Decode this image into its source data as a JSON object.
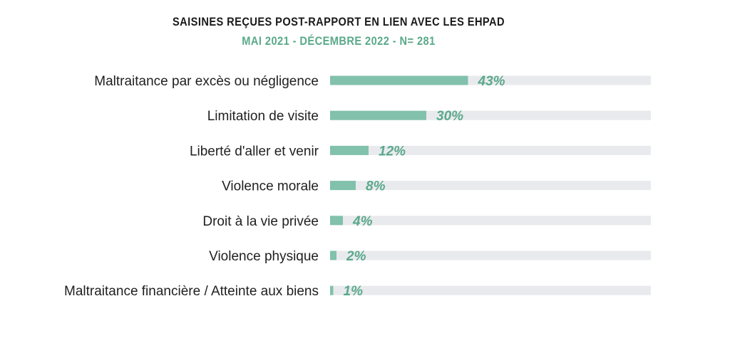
{
  "chart_data": {
    "type": "bar",
    "orientation": "horizontal",
    "title": "SAISINES REÇUES POST-RAPPORT EN LIEN AVEC LES EHPAD",
    "subtitle": "MAI 2021 - DÉCEMBRE 2022 - N= 281",
    "categories": [
      "Maltraitance par excès ou négligence",
      "Limitation de visite",
      "Liberté d'aller et venir",
      "Violence morale",
      "Droit à la vie privée",
      "Violence physique",
      "Maltraitance financière / Atteinte aux biens"
    ],
    "values": [
      43,
      30,
      12,
      8,
      4,
      2,
      1
    ],
    "value_labels": [
      "43%",
      "30%",
      "12%",
      "8%",
      "4%",
      "2%",
      "1%"
    ],
    "xlim": [
      0,
      100
    ],
    "grid": false,
    "colors": {
      "bar": "#82c1ac",
      "track": "#e9eaee",
      "value_text": "#5aa98a",
      "subtitle": "#5aa98a"
    }
  }
}
